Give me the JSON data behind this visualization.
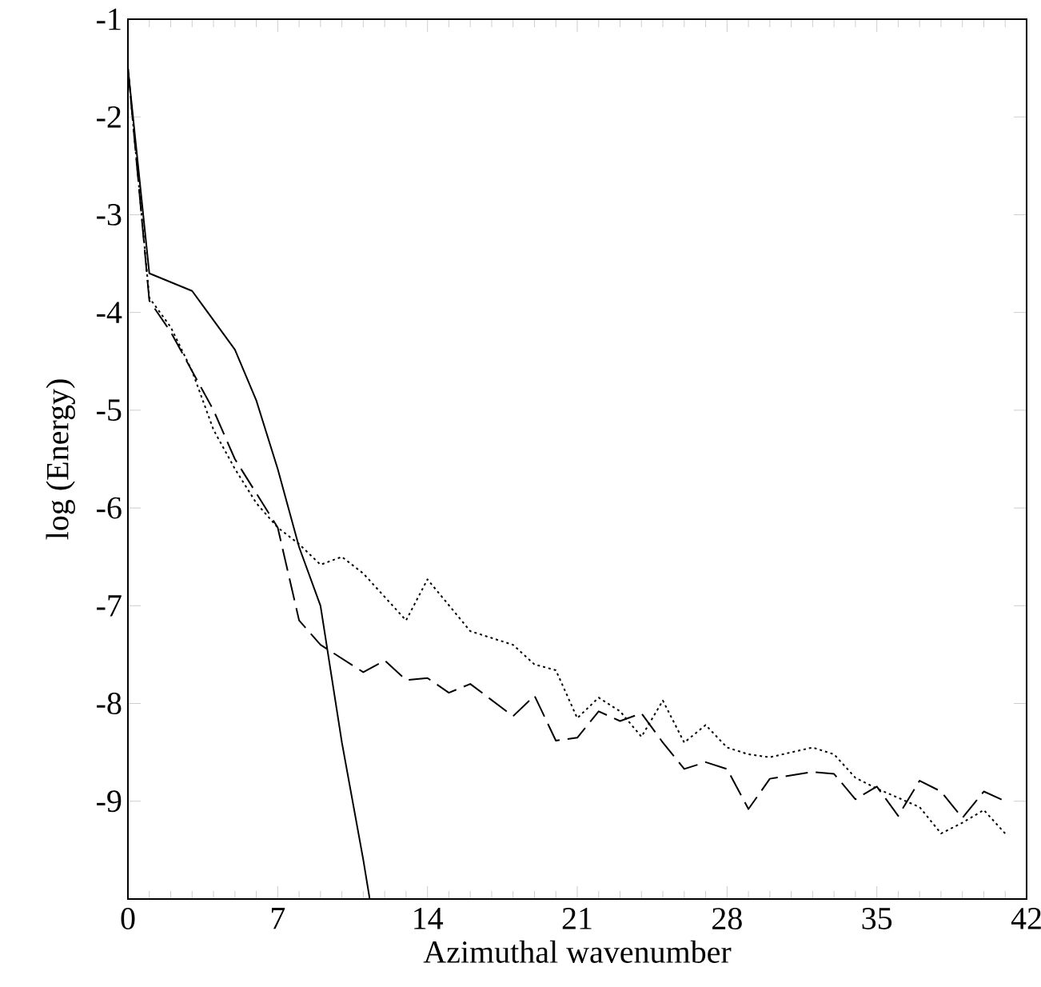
{
  "chart_data": {
    "type": "line",
    "xlabel": "Azimuthal wavenumber",
    "ylabel": "log (Energy)",
    "xlim": [
      0,
      42
    ],
    "ylim": [
      -10,
      -1
    ],
    "xticks": [
      0,
      7,
      14,
      21,
      28,
      35,
      42
    ],
    "yticks": [
      -1,
      -2,
      -3,
      -4,
      -5,
      -6,
      -7,
      -8,
      -9
    ],
    "grid": false,
    "marker": "none",
    "series": [
      {
        "color": "#000000",
        "line_style": "solid",
        "x": [
          0,
          1,
          3,
          5,
          6,
          7,
          8,
          9,
          10,
          11,
          11.3
        ],
        "values": [
          -1.5,
          -3.6,
          -3.78,
          -4.38,
          -4.9,
          -5.6,
          -6.4,
          -7.0,
          -8.4,
          -9.6,
          -10
        ]
      },
      {
        "color": "#000000",
        "line_style": "dashed",
        "x": [
          0,
          1,
          2,
          3,
          4,
          5,
          6,
          7,
          8,
          9,
          11,
          12,
          13,
          14,
          15,
          16,
          18,
          19,
          20,
          21,
          22,
          23,
          24,
          25,
          26,
          27,
          28,
          29,
          30,
          32,
          33,
          34,
          35,
          36,
          37,
          38,
          39,
          40,
          41
        ],
        "values": [
          -1.5,
          -3.88,
          -4.2,
          -4.6,
          -5.0,
          -5.5,
          -5.85,
          -6.2,
          -7.15,
          -7.4,
          -7.68,
          -7.56,
          -7.76,
          -7.74,
          -7.89,
          -7.8,
          -8.13,
          -7.92,
          -8.38,
          -8.35,
          -8.08,
          -8.18,
          -8.1,
          -8.4,
          -8.67,
          -8.6,
          -8.67,
          -9.08,
          -8.77,
          -8.7,
          -8.72,
          -8.98,
          -8.85,
          -9.15,
          -8.79,
          -8.9,
          -9.17,
          -8.9,
          -9.0
        ]
      },
      {
        "color": "#000000",
        "line_style": "dotted",
        "x": [
          0,
          1,
          2,
          3,
          4,
          5,
          6,
          7,
          8,
          9,
          10,
          11,
          13,
          14,
          16,
          18,
          19,
          20,
          21,
          22,
          23,
          24,
          25,
          26,
          27,
          28,
          29,
          30,
          31,
          32,
          33,
          34,
          35,
          37,
          38,
          39,
          40,
          41
        ],
        "values": [
          -1.5,
          -3.85,
          -4.15,
          -4.6,
          -5.2,
          -5.6,
          -5.95,
          -6.2,
          -6.37,
          -6.58,
          -6.5,
          -6.67,
          -7.15,
          -6.73,
          -7.26,
          -7.4,
          -7.6,
          -7.66,
          -8.15,
          -7.94,
          -8.08,
          -8.34,
          -7.97,
          -8.4,
          -8.22,
          -8.45,
          -8.52,
          -8.55,
          -8.5,
          -8.45,
          -8.52,
          -8.76,
          -8.87,
          -9.06,
          -9.33,
          -9.22,
          -9.09,
          -9.33
        ]
      }
    ]
  }
}
